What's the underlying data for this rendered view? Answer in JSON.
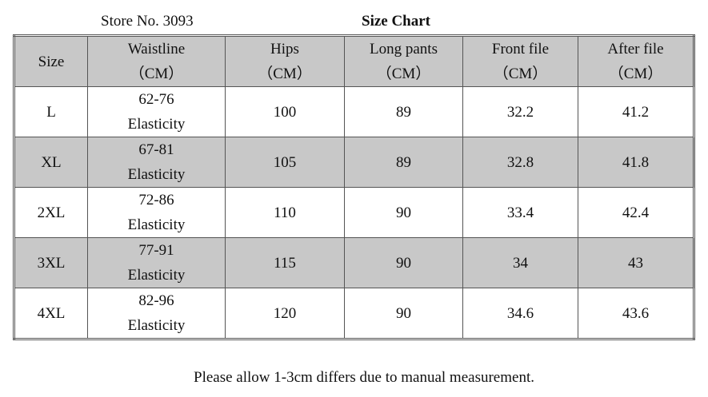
{
  "header": {
    "store": "Store No. 3093",
    "title": "Size Chart"
  },
  "table": {
    "columns": [
      {
        "name": "Size"
      },
      {
        "name": "Waistline",
        "unit": "（CM）"
      },
      {
        "name": "Hips",
        "unit": "（CM）"
      },
      {
        "name": "Long pants",
        "unit": "（CM）"
      },
      {
        "name": "Front file",
        "unit": "（CM）"
      },
      {
        "name": "After file",
        "unit": "（CM）"
      }
    ],
    "rows": [
      [
        "L",
        [
          "62-76",
          "Elasticity"
        ],
        100,
        89,
        32.2,
        41.2
      ],
      [
        "XL",
        [
          "67-81",
          "Elasticity"
        ],
        105,
        89,
        32.8,
        41.8
      ],
      [
        "2XL",
        [
          "72-86",
          "Elasticity"
        ],
        110,
        90,
        33.4,
        42.4
      ],
      [
        "3XL",
        [
          "77-91",
          "Elasticity"
        ],
        115,
        90,
        34,
        43
      ],
      [
        "4XL",
        [
          "82-96",
          "Elasticity"
        ],
        120,
        90,
        34.6,
        43.6
      ]
    ]
  },
  "footer": {
    "note": "Please allow 1-3cm differs due to manual measurement."
  }
}
